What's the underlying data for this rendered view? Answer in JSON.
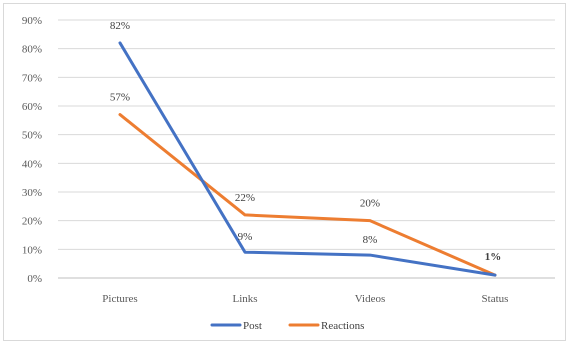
{
  "chart_data": {
    "type": "line",
    "title": "",
    "xlabel": "",
    "ylabel": "",
    "categories": [
      "Pictures",
      "Links",
      "Videos",
      "Status"
    ],
    "ylim": [
      0,
      90
    ],
    "yticks": [
      0,
      10,
      20,
      30,
      40,
      50,
      60,
      70,
      80,
      90
    ],
    "ytick_labels": [
      "0%",
      "10%",
      "20%",
      "30%",
      "40%",
      "50%",
      "60%",
      "70%",
      "80%",
      "90%"
    ],
    "grid": true,
    "legend_position": "bottom",
    "series": [
      {
        "name": "Post",
        "color": "#4472c4",
        "values": [
          82,
          9,
          8,
          1
        ],
        "labels": [
          "82%",
          "9%",
          "8%",
          "1%"
        ]
      },
      {
        "name": "Reactions",
        "color": "#ed7d31",
        "values": [
          57,
          22,
          20,
          1
        ],
        "labels": [
          "57%",
          "22%",
          "20%",
          "1%"
        ]
      }
    ]
  }
}
